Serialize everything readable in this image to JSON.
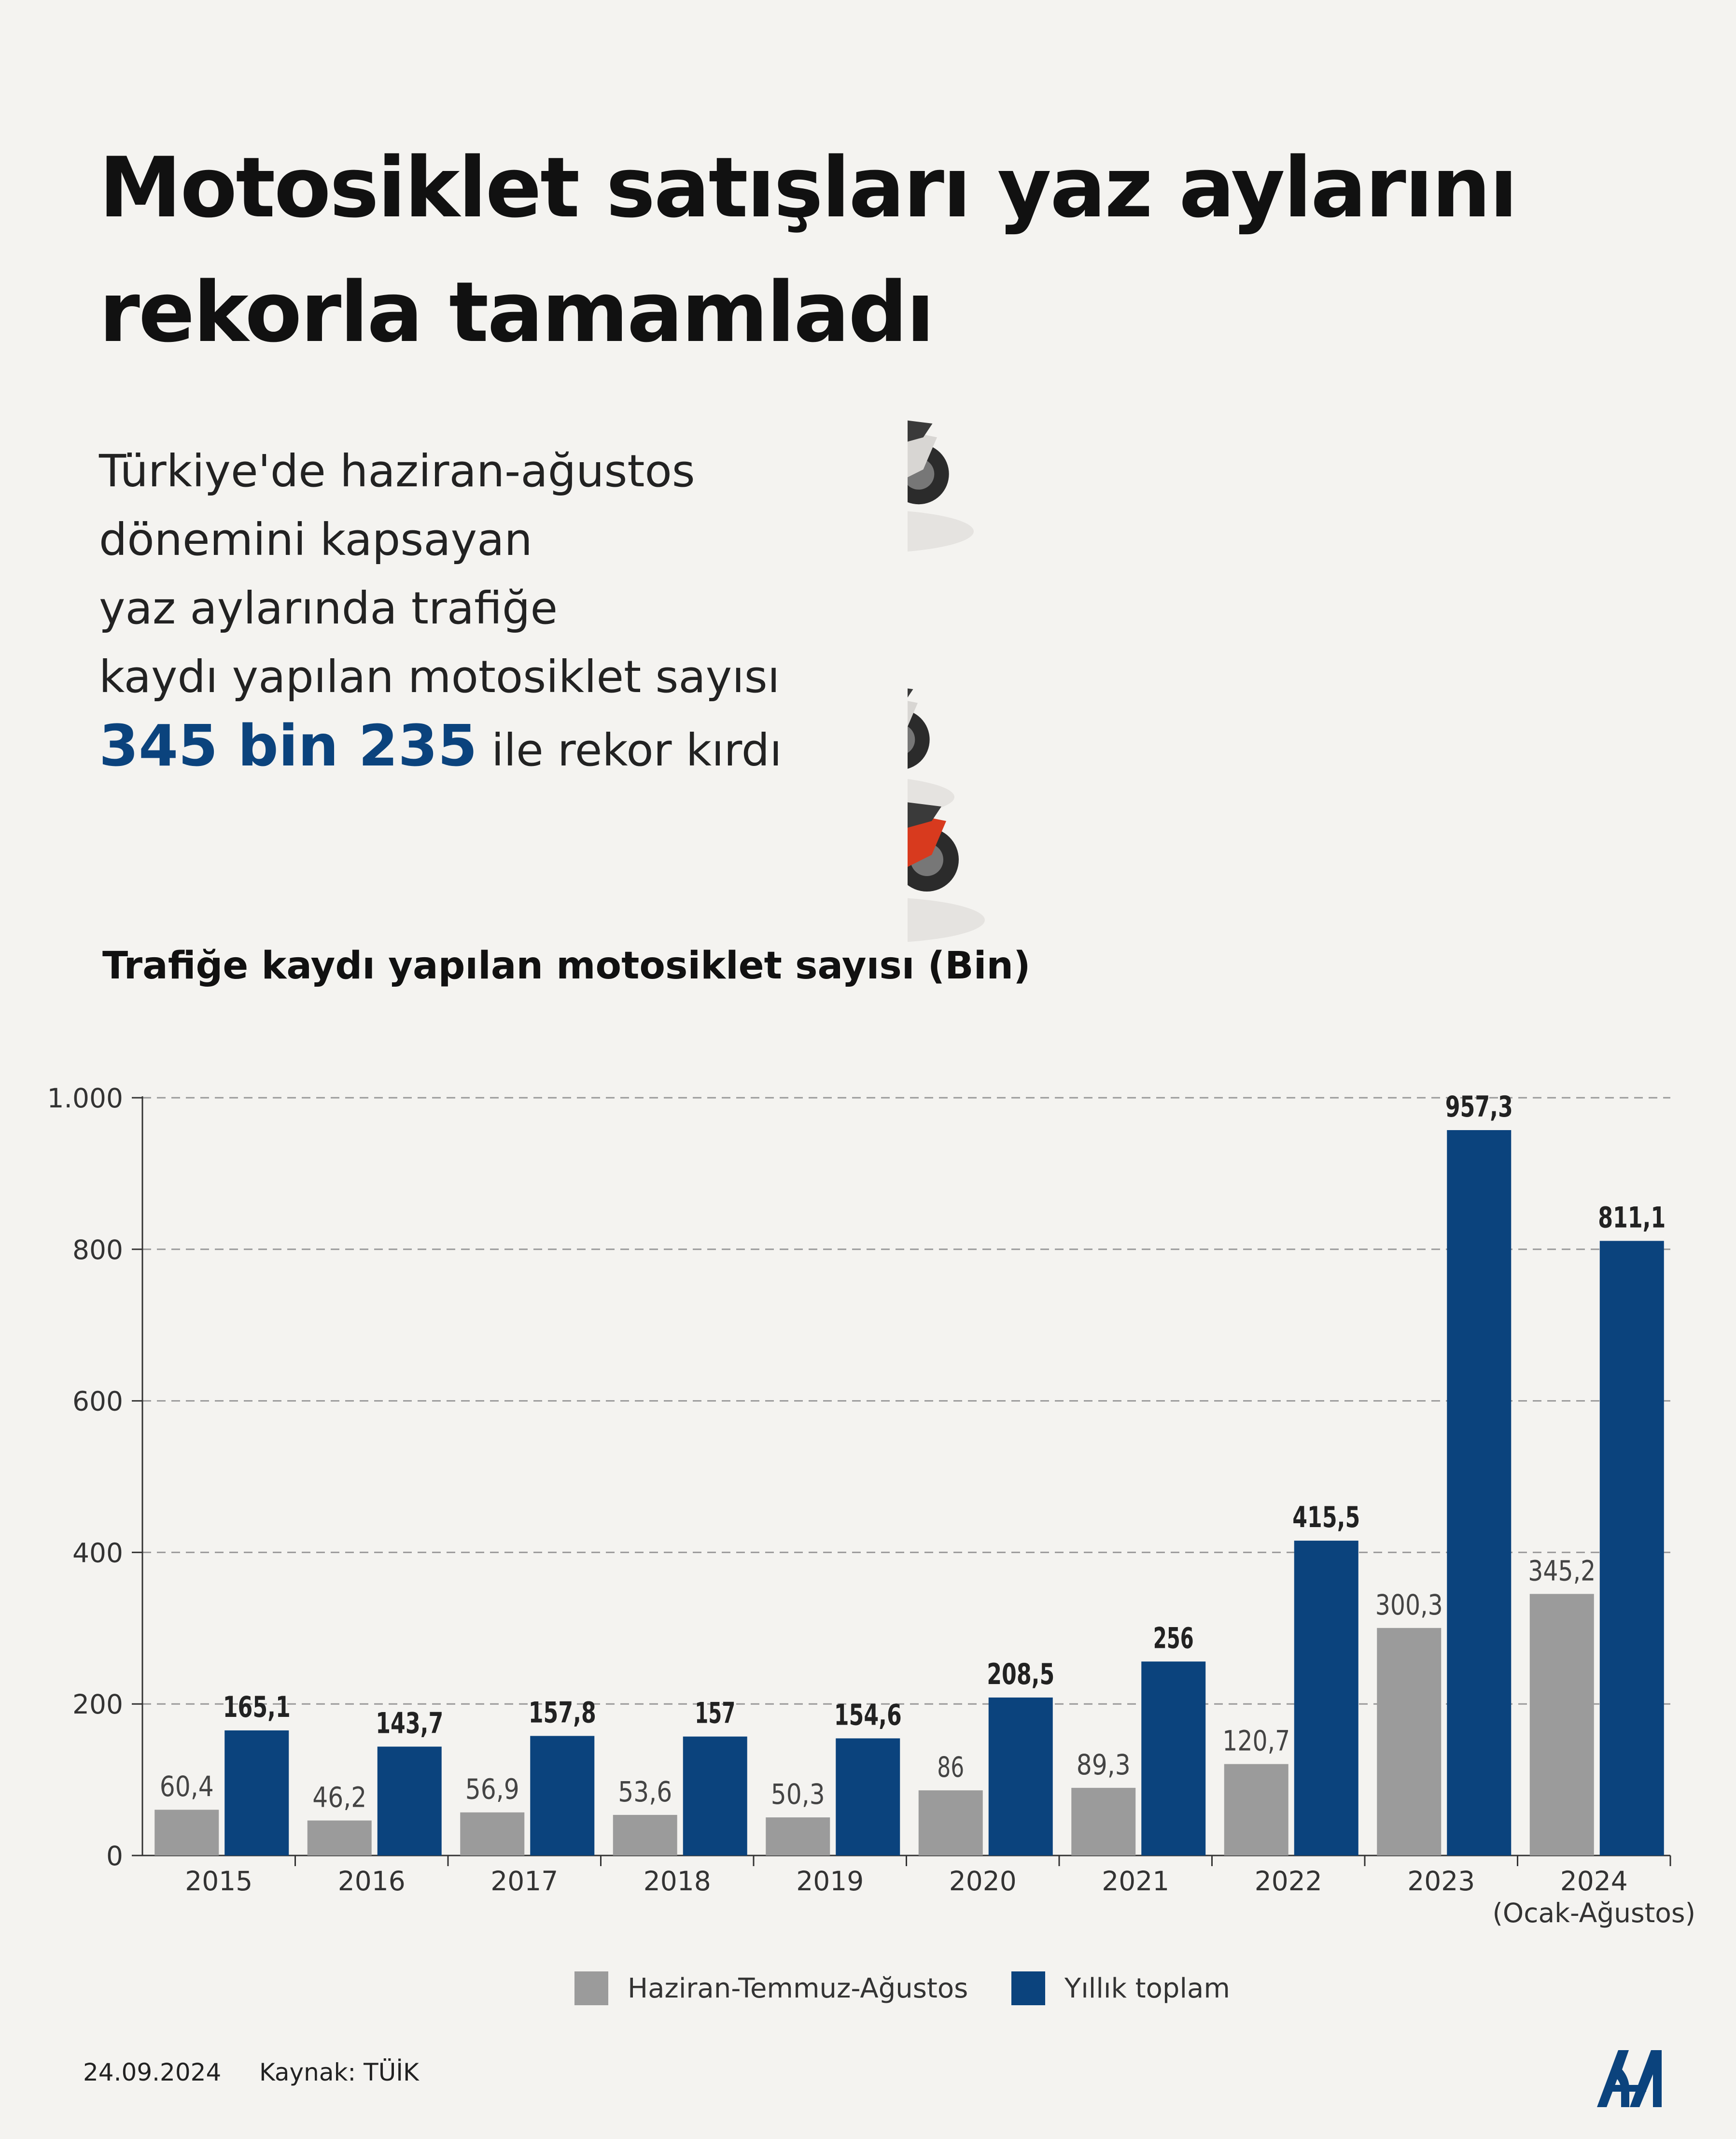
{
  "header": {
    "title_lines": [
      "Motosiklet satışları yaz aylarını",
      "rekorla tamamladı"
    ],
    "subtitle_lines": [
      "Türkiye'de haziran-ağustos",
      "dönemini kapsayan",
      "yaz aylarında trafiğe",
      "kaydı yapılan motosiklet sayısı"
    ],
    "highlight_value": "345 bin 235",
    "highlight_suffix": " ile rekor kırdı"
  },
  "illustration": {
    "icon": "motorcycles-illustration"
  },
  "chart_data": {
    "type": "bar",
    "title": "Trafiğe kaydı yapılan motosiklet sayısı (Bin)",
    "categories": [
      "2015",
      "2016",
      "2017",
      "2018",
      "2019",
      "2020",
      "2021",
      "2022",
      "2023",
      "2024"
    ],
    "category_sublabels": [
      "",
      "",
      "",
      "",
      "",
      "",
      "",
      "",
      "",
      "(Ocak-Ağustos)"
    ],
    "series": [
      {
        "name": "Haziran-Temmuz-Ağustos",
        "color": "#9b9b9b",
        "values": [
          60.4,
          46.2,
          56.9,
          53.6,
          50.3,
          86,
          89.3,
          120.7,
          300.3,
          345.2
        ],
        "labels": [
          "60,4",
          "46,2",
          "56,9",
          "53,6",
          "50,3",
          "86",
          "89,3",
          "120,7",
          "300,3",
          "345,2"
        ]
      },
      {
        "name": "Yıllık toplam",
        "color": "#0b437d",
        "values": [
          165.1,
          143.7,
          157.8,
          157,
          154.6,
          208.5,
          256,
          415.5,
          957.3,
          811.1
        ],
        "labels": [
          "165,1",
          "143,7",
          "157,8",
          "157",
          "154,6",
          "208,5",
          "256",
          "415,5",
          "957,3",
          "811,1"
        ]
      }
    ],
    "ylim": [
      0,
      1000
    ],
    "yticks": [
      0,
      200,
      400,
      600,
      800,
      1000
    ],
    "ytick_labels": [
      "0",
      "200",
      "400",
      "600",
      "800",
      "1.000"
    ],
    "grid": "dashed",
    "legend_position": "bottom"
  },
  "footer": {
    "date": "24.09.2024",
    "source": "Kaynak: TÜİK",
    "logo": "aa-logo-icon"
  }
}
